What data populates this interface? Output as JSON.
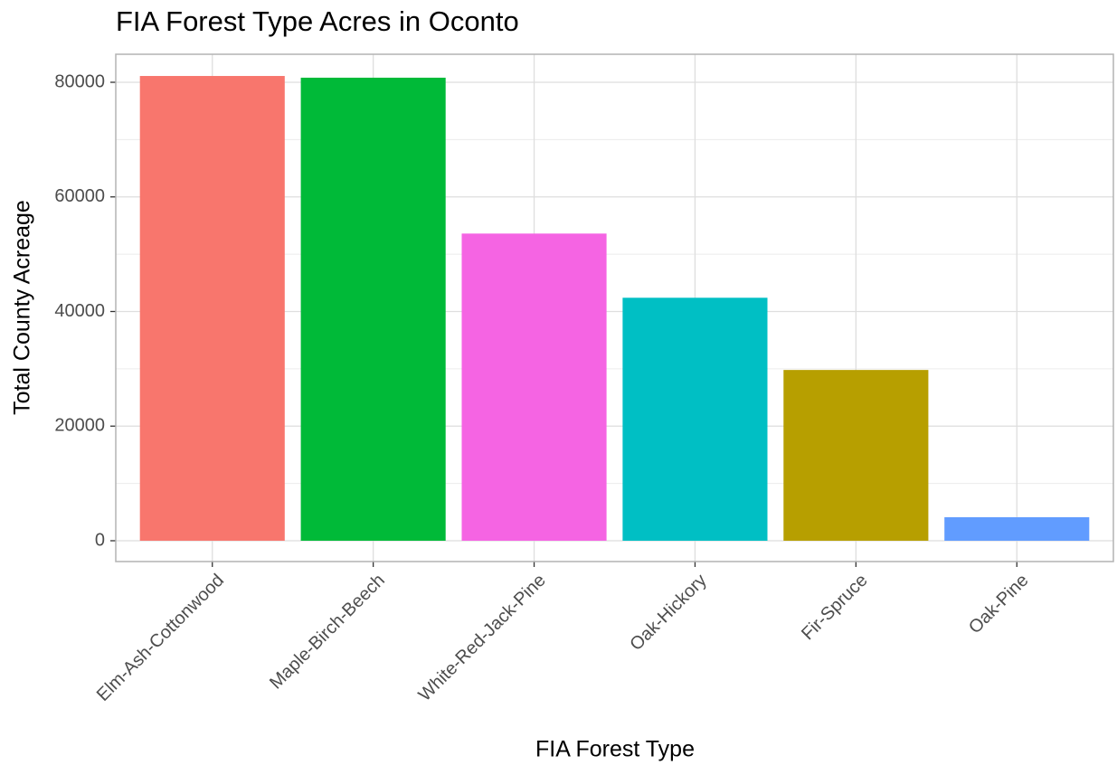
{
  "chart_data": {
    "type": "bar",
    "title": "FIA Forest Type Acres in Oconto",
    "x_label": "FIA Forest Type",
    "y_label": "Total County Acreage",
    "categories": [
      "Elm-Ash-Cottonwood",
      "Maple-Birch-Beech",
      "White-Red-Jack-Pine",
      "Oak-Hickory",
      "Fir-Spruce",
      "Oak-Pine"
    ],
    "values": [
      81100,
      80800,
      53600,
      42400,
      29800,
      4100
    ],
    "colors": [
      "#F8766D",
      "#00BA38",
      "#F564E3",
      "#00BFC4",
      "#B79F00",
      "#619CFF"
    ],
    "ylim": [
      -3630,
      84890
    ],
    "yticks": [
      0,
      20000,
      40000,
      60000,
      80000
    ],
    "grid": true
  }
}
